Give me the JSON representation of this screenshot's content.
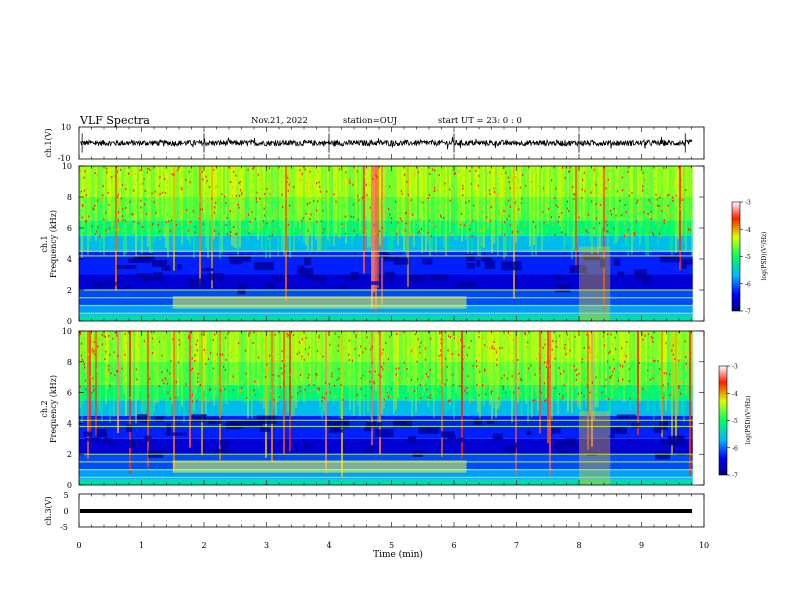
{
  "header": {
    "title": "VLF Spectra",
    "date": "Nov.21, 2022",
    "station": "station=OUJ",
    "start": "start  UT  =   23: 0  : 0"
  },
  "chart_data": [
    {
      "id": "ch1_waveform",
      "type": "line",
      "ylabel": "ch.1(V)",
      "ylim": [
        -10,
        10
      ],
      "yticks": [
        "10",
        "-10"
      ],
      "xlim": [
        0,
        10
      ],
      "description_values": {
        "typical_amplitude_V": 3,
        "max_amplitude_V": 6
      },
      "color": "#000000"
    },
    {
      "id": "ch1_spectrogram",
      "type": "heatmap",
      "ylabel": "ch.1\nFrequency (kHz)",
      "ylabel_lines": [
        "ch.1",
        "Frequency  (kHz)"
      ],
      "ylim": [
        0,
        10
      ],
      "yticks": [
        "0",
        "2",
        "4",
        "6",
        "8",
        "10"
      ],
      "xlim": [
        0,
        10
      ],
      "colorbar": {
        "label": "log(PSD)(V²/Hz)",
        "range": [
          -7,
          -3
        ],
        "ticks": [
          "-3",
          "-4",
          "-5",
          "-6",
          "-7"
        ]
      },
      "bands_kHz": [
        0.5,
        1.0,
        1.5,
        2.0,
        4.2,
        4.5
      ]
    },
    {
      "id": "ch2_spectrogram",
      "type": "heatmap",
      "ylabel_lines": [
        "ch.2",
        "Frequency  (kHz)"
      ],
      "ylim": [
        0,
        10
      ],
      "yticks": [
        "0",
        "2",
        "4",
        "6",
        "8",
        "10"
      ],
      "xlim": [
        0,
        10
      ],
      "colorbar": {
        "label": "log(PSD)(V²/Hz)",
        "range": [
          -7,
          -3
        ],
        "ticks": [
          "-3",
          "-4",
          "-5",
          "-6",
          "-7"
        ]
      },
      "bands_kHz": [
        0.5,
        1.0,
        1.5,
        2.0,
        3.8,
        4.2
      ]
    },
    {
      "id": "ch3_waveform",
      "type": "line",
      "ylabel": "ch.3(V)",
      "ylim": [
        -5,
        5
      ],
      "yticks": [
        "5",
        "0",
        "-5"
      ],
      "xlim": [
        0,
        10
      ],
      "color": "#000000"
    }
  ],
  "xaxis": {
    "label": "Time  (min)",
    "ticks": [
      "0",
      "1",
      "2",
      "3",
      "4",
      "5",
      "6",
      "7",
      "8",
      "9",
      "10"
    ],
    "range": [
      0,
      10
    ]
  }
}
